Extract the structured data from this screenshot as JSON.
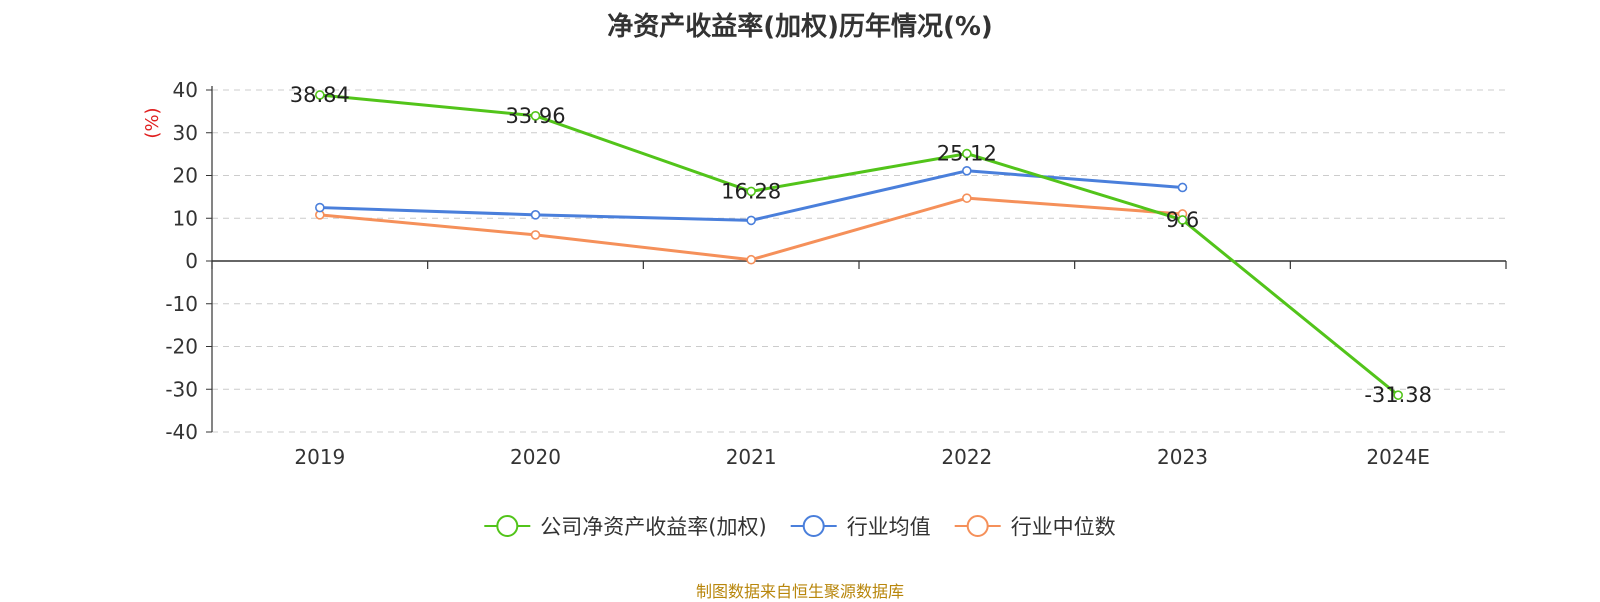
{
  "chart_data": {
    "type": "line",
    "title": "净资产收益率(加权)历年情况(%)",
    "ylabel": "(%)",
    "xlabel": "",
    "categories": [
      "2019",
      "2020",
      "2021",
      "2022",
      "2023",
      "2024E"
    ],
    "ylim": [
      -40,
      40
    ],
    "yticks": [
      40,
      30,
      20,
      10,
      0,
      -10,
      -20,
      -30,
      -40
    ],
    "grid": true,
    "legend_position": "bottom",
    "series": [
      {
        "name": "公司净资产收益率(加权)",
        "color": "#52c41a",
        "values": [
          38.84,
          33.96,
          16.28,
          25.12,
          9.6,
          -31.38
        ],
        "labels": [
          "38.84",
          "33.96",
          "16.28",
          "25.12",
          "9.6",
          "-31.38"
        ]
      },
      {
        "name": "行业均值",
        "color": "#4a7fdb",
        "values": [
          12.5,
          10.8,
          9.5,
          21.1,
          17.2,
          null
        ]
      },
      {
        "name": "行业中位数",
        "color": "#f5905a",
        "values": [
          10.8,
          6.1,
          0.3,
          14.7,
          11.0,
          null
        ]
      }
    ]
  },
  "source": "制图数据来自恒生聚源数据库"
}
